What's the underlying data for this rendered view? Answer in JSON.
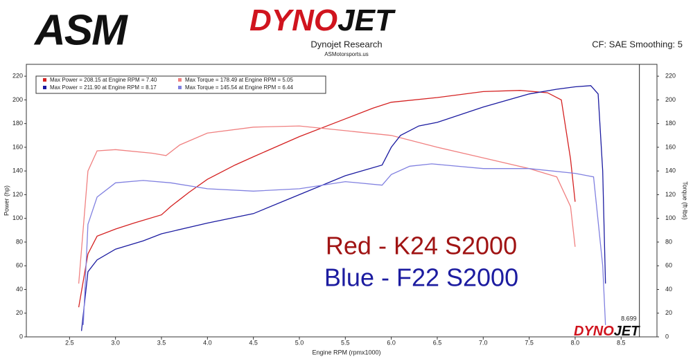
{
  "chart_data": {
    "type": "line",
    "logo": "ASM",
    "brand_parts": [
      "DYNO",
      "JET"
    ],
    "title": "Dynojet Research",
    "subtitle": "ASMotorsports.us",
    "note": "CF: SAE Smoothing: 5",
    "xlabel": "Engine RPM (rpmx1000)",
    "ylabel": "Power (hp)",
    "y2label": "Torque (ft-lbs)",
    "annotations": [
      {
        "text": "Red - K24 S2000",
        "color": "#a01414"
      },
      {
        "text": "Blue - F22 S2000",
        "color": "#1c1ca0"
      }
    ],
    "cursor": 8.699,
    "xlim": [
      2.03,
      8.89
    ],
    "xticks": [
      {
        "value": 2.5,
        "label": "2.5"
      },
      {
        "value": 3.0,
        "label": "3.0"
      },
      {
        "value": 3.5,
        "label": "3.5"
      },
      {
        "value": 4.0,
        "label": "4.0"
      },
      {
        "value": 4.5,
        "label": "4.5"
      },
      {
        "value": 5.0,
        "label": "5.0"
      },
      {
        "value": 5.5,
        "label": "5.5"
      },
      {
        "value": 6.0,
        "label": "6.0"
      },
      {
        "value": 6.5,
        "label": "6.5"
      },
      {
        "value": 7.0,
        "label": "7.0"
      },
      {
        "value": 7.5,
        "label": "7.5"
      },
      {
        "value": 8.0,
        "label": "8.0"
      },
      {
        "value": 8.5,
        "label": "8.5"
      }
    ],
    "ylim": [
      0,
      230
    ],
    "yticks": [
      0,
      20,
      40,
      60,
      80,
      100,
      120,
      140,
      160,
      180,
      200,
      220
    ],
    "y2lim": [
      0,
      230
    ],
    "y2ticks": [
      0,
      20,
      40,
      60,
      80,
      100,
      120,
      140,
      160,
      180,
      200,
      220
    ],
    "grid": false,
    "series": [
      {
        "name": "Max Power = 208.15 at Engine RPM = 7.40",
        "color": "#d42020",
        "x": [
          2.6,
          2.7,
          2.8,
          3.0,
          3.2,
          3.5,
          3.6,
          3.8,
          4.0,
          4.3,
          4.5,
          5.0,
          5.5,
          5.8,
          6.0,
          6.5,
          7.0,
          7.4,
          7.7,
          7.85,
          7.95,
          8.0
        ],
        "values": [
          25,
          70,
          85,
          91,
          96,
          103,
          110,
          122,
          133,
          145,
          152,
          169,
          184,
          193,
          198,
          202,
          207,
          208,
          206,
          200,
          150,
          114
        ]
      },
      {
        "name": "Max Torque = 178.49 at Engine RPM = 5.05",
        "color": "#f08080",
        "axis": "y2",
        "x": [
          2.6,
          2.7,
          2.8,
          3.0,
          3.4,
          3.55,
          3.7,
          4.0,
          4.5,
          5.0,
          5.5,
          6.0,
          6.5,
          7.0,
          7.5,
          7.8,
          7.95,
          8.0
        ],
        "values": [
          45,
          140,
          157,
          158,
          155,
          153,
          162,
          172,
          177,
          178,
          174,
          170,
          160,
          151,
          142,
          135,
          110,
          76
        ]
      },
      {
        "name": "Max Power = 211.90 at Engine RPM = 8.17",
        "color": "#1a1aa0",
        "x": [
          2.63,
          2.7,
          2.8,
          3.0,
          3.3,
          3.5,
          4.0,
          4.5,
          5.0,
          5.5,
          5.9,
          6.0,
          6.1,
          6.3,
          6.5,
          7.0,
          7.5,
          7.8,
          8.0,
          8.17,
          8.25,
          8.3,
          8.33
        ],
        "values": [
          5,
          55,
          65,
          74,
          81,
          87,
          96,
          104,
          120,
          136,
          145,
          160,
          170,
          178,
          181,
          194,
          205,
          209,
          211,
          212,
          205,
          140,
          45
        ]
      },
      {
        "name": "Max Torque = 145.54 at Engine RPM = 6.44",
        "color": "#8080e0",
        "axis": "y2",
        "x": [
          2.65,
          2.7,
          2.8,
          3.0,
          3.3,
          3.6,
          4.0,
          4.5,
          5.0,
          5.5,
          5.9,
          6.0,
          6.2,
          6.44,
          7.0,
          7.5,
          8.0,
          8.2,
          8.3,
          8.33
        ],
        "values": [
          10,
          95,
          118,
          130,
          132,
          130,
          125,
          123,
          125,
          131,
          128,
          137,
          144,
          146,
          142,
          142,
          138,
          135,
          60,
          10
        ]
      }
    ]
  }
}
